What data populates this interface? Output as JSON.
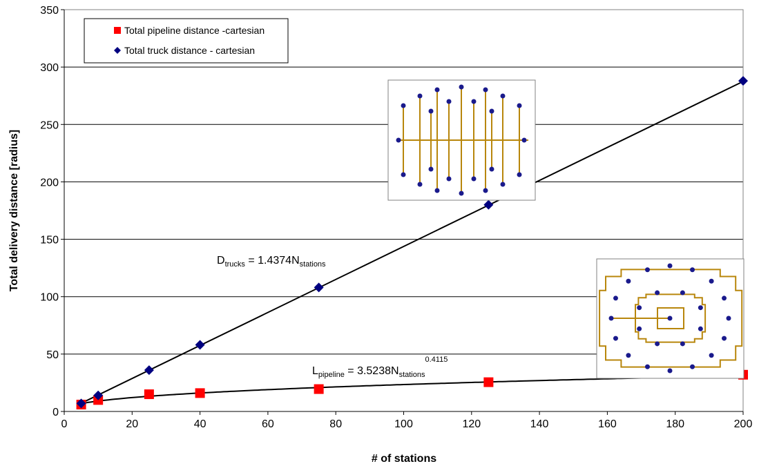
{
  "chart_data": {
    "type": "scatter",
    "xlabel": "# of stations",
    "ylabel": "Total delivery distance [radius]",
    "xlim": [
      0,
      200
    ],
    "ylim": [
      0,
      350
    ],
    "xticks": [
      0,
      20,
      40,
      60,
      80,
      100,
      120,
      140,
      160,
      180,
      200
    ],
    "yticks": [
      0,
      50,
      100,
      150,
      200,
      250,
      300,
      350
    ],
    "grid": "horizontal",
    "legend_position": "top-left",
    "series": [
      {
        "name": "Total pipeline distance -cartesian",
        "marker": "square",
        "color": "#ff0000",
        "x": [
          5,
          10,
          25,
          40,
          75,
          125,
          200
        ],
        "y": [
          6,
          10,
          15,
          16,
          19.5,
          25.5,
          32
        ]
      },
      {
        "name": "Total truck distance - cartesian",
        "marker": "diamond",
        "color": "#000080",
        "x": [
          5,
          10,
          25,
          40,
          75,
          125,
          200
        ],
        "y": [
          7,
          14,
          36,
          58,
          108,
          180,
          288
        ]
      }
    ],
    "trendlines": [
      {
        "kind": "linear",
        "coefficient": 1.4374,
        "label_main": "D",
        "label_sub": "trucks",
        "label_eq": " = 1.4374N",
        "label_sub2": "stations"
      },
      {
        "kind": "power",
        "coefficient": 3.5238,
        "exponent": 0.4115,
        "label_main": "L",
        "label_sub": "pipeline",
        "label_eq": " = 3.5238N",
        "label_sub2": "stations",
        "label_sup": "0.4115"
      }
    ],
    "insets": [
      {
        "name": "cartesian-network-inset"
      },
      {
        "name": "ring-network-inset"
      }
    ]
  }
}
